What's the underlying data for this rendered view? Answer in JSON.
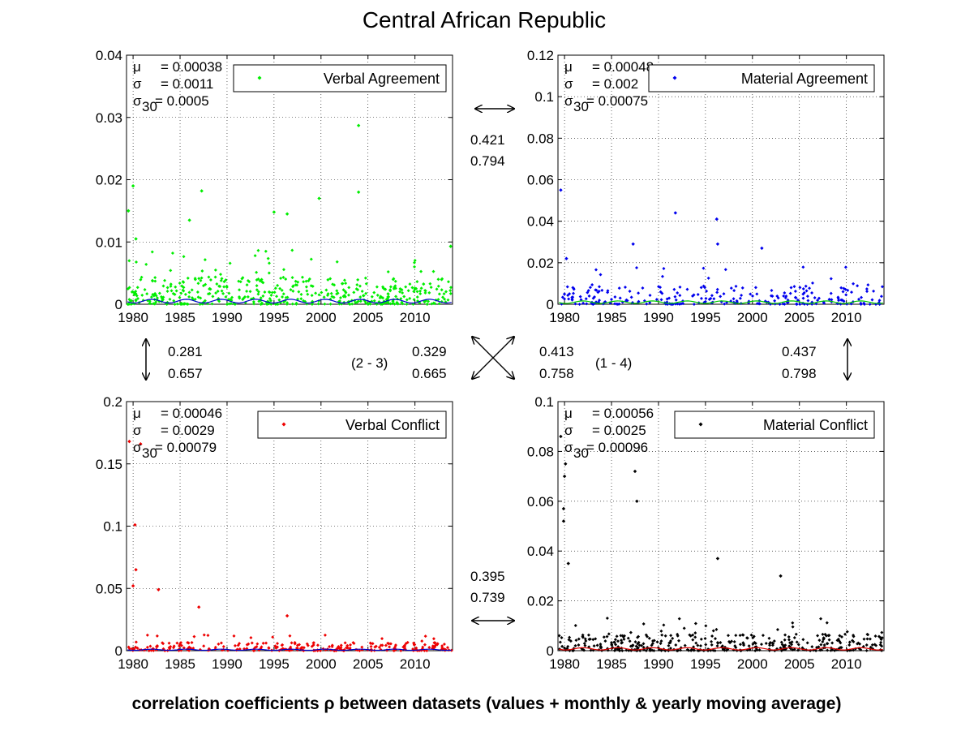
{
  "figure": {
    "title": "Central African Republic",
    "caption": "correlation coefficients ρ between datasets (values + monthly & yearly moving average)"
  },
  "chart_data": [
    {
      "type": "scatter",
      "name": "Verbal Agreement",
      "color": "#00ee00",
      "avg_color": "#0000cc",
      "legend": "Verbal Agreement",
      "stats": {
        "mu": "0.00038",
        "sigma": "0.0011",
        "sigma30": "0.0005"
      },
      "xlim": [
        1979.3,
        2014.0
      ],
      "ylim": [
        0,
        0.04
      ],
      "xticks": [
        1980,
        1985,
        1990,
        1995,
        2000,
        2005,
        2010
      ],
      "yticks": [
        "0",
        "0.01",
        "0.02",
        "0.03",
        "0.04"
      ],
      "baseline": 0.002,
      "density": 0.55,
      "notable_points": [
        {
          "x": 1979.5,
          "y": 0.015
        },
        {
          "x": 1980.0,
          "y": 0.019
        },
        {
          "x": 1980.3,
          "y": 0.0105
        },
        {
          "x": 1986.0,
          "y": 0.0135
        },
        {
          "x": 1987.3,
          "y": 0.0182
        },
        {
          "x": 1995.0,
          "y": 0.0148
        },
        {
          "x": 1996.4,
          "y": 0.0145
        },
        {
          "x": 1999.8,
          "y": 0.017
        },
        {
          "x": 2004.0,
          "y": 0.0287
        },
        {
          "x": 2004.0,
          "y": 0.018
        },
        {
          "x": 2013.8,
          "y": 0.0093
        }
      ]
    },
    {
      "type": "scatter",
      "name": "Material Agreement",
      "color": "#0000ee",
      "avg_color": "#00cc00",
      "legend": "Material Agreement",
      "stats": {
        "mu": "0.00048",
        "sigma": "0.002",
        "sigma30": "0.00075"
      },
      "xlim": [
        1979.3,
        2014.0
      ],
      "ylim": [
        0,
        0.12
      ],
      "xticks": [
        1980,
        1985,
        1990,
        1995,
        2000,
        2005,
        2010
      ],
      "yticks": [
        "0",
        "0.02",
        "0.04",
        "0.06",
        "0.08",
        "0.1",
        "0.12"
      ],
      "baseline": 0.004,
      "density": 0.3,
      "notable_points": [
        {
          "x": 1979.6,
          "y": 0.055
        },
        {
          "x": 1980.2,
          "y": 0.022
        },
        {
          "x": 1987.3,
          "y": 0.029
        },
        {
          "x": 1991.8,
          "y": 0.044
        },
        {
          "x": 1996.2,
          "y": 0.041
        },
        {
          "x": 1996.3,
          "y": 0.029
        },
        {
          "x": 2001.0,
          "y": 0.027
        }
      ]
    },
    {
      "type": "scatter",
      "name": "Verbal Conflict",
      "color": "#ee0000",
      "avg_color": "#0000cc",
      "legend": "Verbal Conflict",
      "stats": {
        "mu": "0.00046",
        "sigma": "0.0029",
        "sigma30": "0.00079"
      },
      "xlim": [
        1979.3,
        2014.0
      ],
      "ylim": [
        0,
        0.2
      ],
      "xticks": [
        1980,
        1985,
        1990,
        1995,
        2000,
        2005,
        2010
      ],
      "yticks": [
        "0",
        "0.05",
        "0.1",
        "0.15",
        "0.2"
      ],
      "baseline": 0.003,
      "density": 0.3,
      "notable_points": [
        {
          "x": 1979.6,
          "y": 0.168
        },
        {
          "x": 1980.8,
          "y": 0.166
        },
        {
          "x": 1980.2,
          "y": 0.101
        },
        {
          "x": 1980.3,
          "y": 0.065
        },
        {
          "x": 1980.0,
          "y": 0.052
        },
        {
          "x": 1982.7,
          "y": 0.049
        },
        {
          "x": 1987.0,
          "y": 0.035
        },
        {
          "x": 1996.4,
          "y": 0.028
        }
      ]
    },
    {
      "type": "scatter",
      "name": "Material Conflict",
      "color": "#000000",
      "avg_color": "#dd0000",
      "legend": "Material Conflict",
      "stats": {
        "mu": "0.00056",
        "sigma": "0.0025",
        "sigma30": "0.00096"
      },
      "xlim": [
        1979.3,
        2014.0
      ],
      "ylim": [
        0,
        0.1
      ],
      "xticks": [
        1980,
        1985,
        1990,
        1995,
        2000,
        2005,
        2010
      ],
      "yticks": [
        "0",
        "0.02",
        "0.04",
        "0.06",
        "0.08",
        "0.1"
      ],
      "baseline": 0.003,
      "density": 0.45,
      "notable_points": [
        {
          "x": 1979.6,
          "y": 0.086
        },
        {
          "x": 1980.1,
          "y": 0.075
        },
        {
          "x": 1980.0,
          "y": 0.07
        },
        {
          "x": 1979.9,
          "y": 0.052
        },
        {
          "x": 1979.9,
          "y": 0.057
        },
        {
          "x": 1987.5,
          "y": 0.072
        },
        {
          "x": 1987.7,
          "y": 0.06
        },
        {
          "x": 1996.3,
          "y": 0.037
        },
        {
          "x": 2003.0,
          "y": 0.03
        },
        {
          "x": 1980.4,
          "y": 0.035
        }
      ]
    }
  ],
  "correlations": {
    "top": {
      "a": "0.421",
      "b": "0.794"
    },
    "left": {
      "a": "0.281",
      "b": "0.657"
    },
    "right": {
      "a": "0.437",
      "b": "0.798"
    },
    "diag_23": {
      "label": "(2 - 3)",
      "a": "0.329",
      "b": "0.665"
    },
    "diag_14": {
      "label": "(1 - 4)",
      "a": "0.413",
      "b": "0.758"
    },
    "bottom": {
      "a": "0.395",
      "b": "0.739"
    }
  },
  "labels": {
    "mu": "μ",
    "sigma": "σ",
    "sigma30_sub": "30",
    "eq": "= "
  }
}
